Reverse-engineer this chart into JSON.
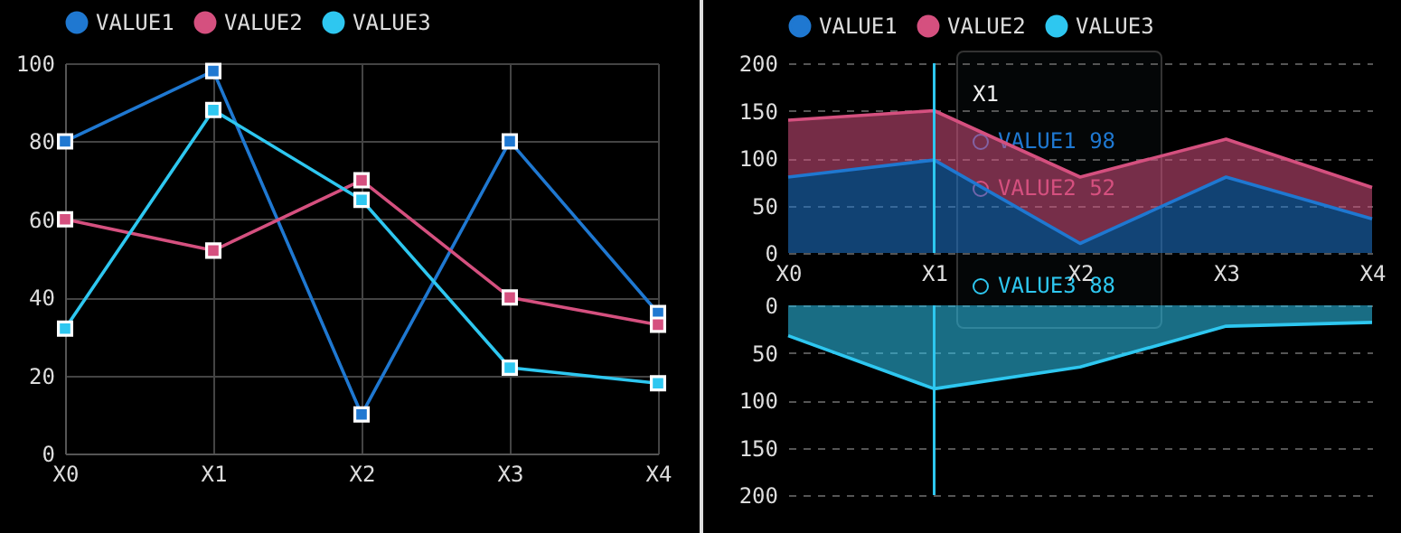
{
  "chart_data": [
    {
      "type": "line",
      "categories": [
        "X0",
        "X1",
        "X2",
        "X3",
        "X4"
      ],
      "ylim": [
        0,
        100
      ],
      "yticks": [
        0,
        20,
        40,
        60,
        80,
        100
      ],
      "grid": true,
      "legend": "top",
      "marker": "square",
      "line_style": "solid",
      "series": [
        {
          "name": "VALUE1",
          "color": "#1f78d1",
          "values": [
            80,
            98,
            10,
            80,
            36
          ]
        },
        {
          "name": "VALUE2",
          "color": "#d5507f",
          "values": [
            60,
            52,
            70,
            40,
            33
          ]
        },
        {
          "name": "VALUE3",
          "color": "#2ec7f0",
          "values": [
            32,
            88,
            65,
            22,
            18
          ]
        }
      ]
    },
    {
      "type": "area",
      "categories": [
        "X0",
        "X1",
        "X2",
        "X3",
        "X4"
      ],
      "ylim": [
        0,
        200
      ],
      "yticks": [
        0,
        50,
        100,
        150,
        200
      ],
      "grid": "y",
      "legend": "top",
      "stacked": true,
      "ref_lines": [
        {
          "axis": "x",
          "value": "X1",
          "color": "#2ec7f0"
        }
      ],
      "annotations": [
        "X1",
        "VALUE1 98",
        "VALUE2 52",
        "VALUE3 88"
      ],
      "series": [
        {
          "name": "VALUE1",
          "color": "#1f78d1",
          "values": [
            80,
            98,
            10,
            80,
            36
          ]
        },
        {
          "name": "VALUE2",
          "color": "#d5507f",
          "values": [
            60,
            52,
            70,
            40,
            33
          ]
        }
      ]
    },
    {
      "type": "area",
      "categories": [
        "X0",
        "X1",
        "X2",
        "X3",
        "X4"
      ],
      "ylim": [
        200,
        0
      ],
      "yticks": [
        0,
        50,
        100,
        150,
        200
      ],
      "grid": "y",
      "tick_labels": "y",
      "ref_lines": [
        {
          "axis": "x",
          "value": "X1",
          "color": "#2ec7f0"
        }
      ],
      "series": [
        {
          "name": "VALUE3",
          "color": "#2ec7f0",
          "values": [
            32,
            88,
            65,
            22,
            18
          ]
        }
      ]
    }
  ]
}
